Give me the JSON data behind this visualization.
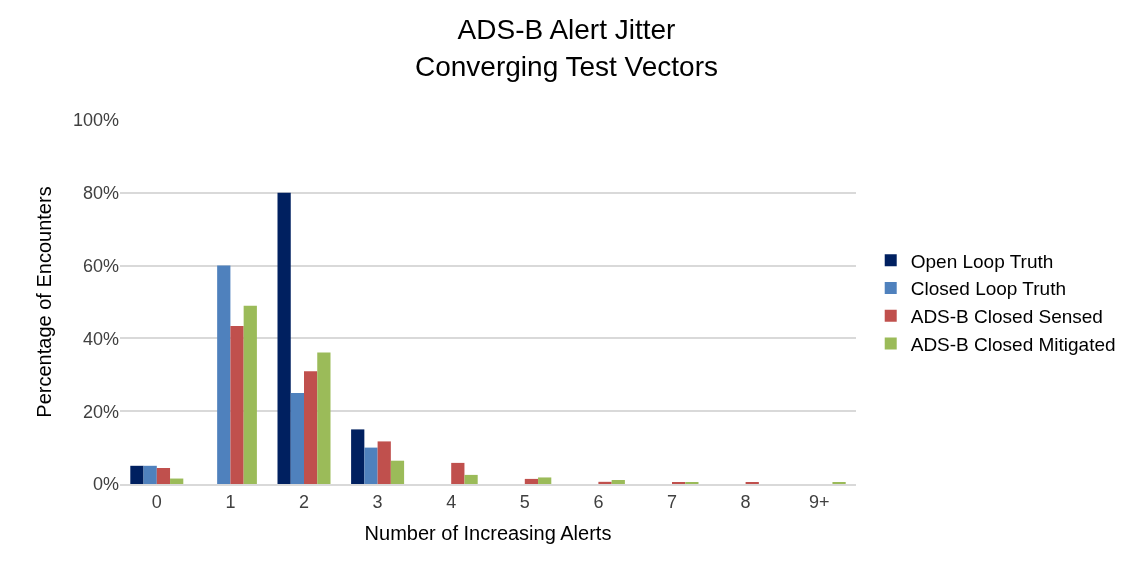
{
  "chart_data": {
    "type": "bar",
    "title": "ADS-B Alert Jitter\nConverging Test Vectors",
    "xlabel": "Number of Increasing Alerts",
    "ylabel": "Percentage of Encounters",
    "categories": [
      "0",
      "1",
      "2",
      "3",
      "4",
      "5",
      "6",
      "7",
      "8",
      "9+"
    ],
    "series": [
      {
        "name": "Open Loop Truth",
        "color": "#002060",
        "values": [
          5.0,
          null,
          80,
          15,
          null,
          null,
          null,
          null,
          null,
          null
        ]
      },
      {
        "name": "Closed Loop Truth",
        "color": "#4f81bd",
        "values": [
          5.0,
          60,
          25,
          10,
          null,
          null,
          null,
          null,
          null,
          null
        ]
      },
      {
        "name": "ADS-B Closed Sensed",
        "color": "#c0504d",
        "values": [
          4.4,
          43.4,
          31.0,
          11.7,
          5.8,
          1.4,
          0.6,
          0.5,
          0.4,
          null
        ]
      },
      {
        "name": "ADS-B Closed Mitigated",
        "color": "#9bbb59",
        "values": [
          1.5,
          49.0,
          36.1,
          6.4,
          2.5,
          1.8,
          1.1,
          0.4,
          null,
          0.4
        ]
      }
    ],
    "ylim": [
      0,
      100
    ],
    "yticks": [
      {
        "value": 0,
        "label": "0%"
      },
      {
        "value": 20,
        "label": "20%"
      },
      {
        "value": 40,
        "label": "40%"
      },
      {
        "value": 60,
        "label": "60%"
      },
      {
        "value": 80,
        "label": "80%"
      },
      {
        "value": 100,
        "label": "100%"
      }
    ],
    "grid": "y",
    "legend": "right"
  }
}
